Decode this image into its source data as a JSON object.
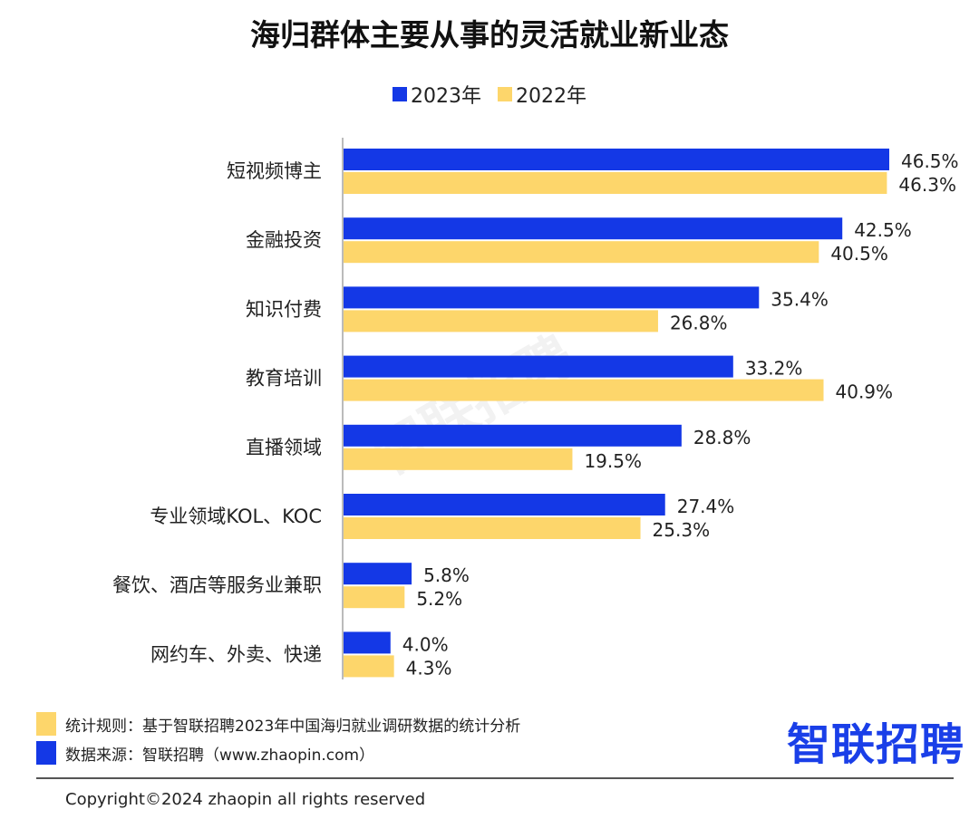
{
  "chart_data": {
    "type": "bar",
    "orientation": "horizontal",
    "title": "海归群体主要从事的灵活就业新业态",
    "categories": [
      "短视频博主",
      "金融投资",
      "知识付费",
      "教育培训",
      "直播领域",
      "专业领域KOL、KOC",
      "餐饮、酒店等服务业兼职",
      "网约车、外卖、快递"
    ],
    "series": [
      {
        "name": "2023年",
        "color": "#1438e6",
        "values": [
          46.5,
          42.5,
          35.4,
          33.2,
          28.8,
          27.4,
          5.8,
          4.0
        ]
      },
      {
        "name": "2022年",
        "color": "#fdd66b",
        "values": [
          46.3,
          40.5,
          26.8,
          40.9,
          19.5,
          25.3,
          5.2,
          4.3
        ]
      }
    ],
    "value_suffix": "%",
    "legend_position": "top",
    "grid": false
  },
  "watermark": "智联招聘",
  "notes": {
    "rule": "统计规则：基于智联招聘2023年中国海归就业调研数据的统计分析",
    "source": "数据来源：智联招聘（www.zhaopin.com）"
  },
  "logo": "智联招聘",
  "copyright": "Copyright©2024 zhaopin all rights reserved"
}
